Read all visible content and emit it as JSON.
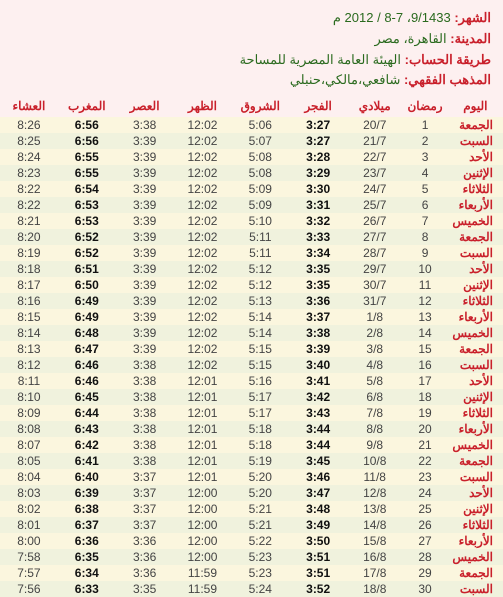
{
  "header": {
    "month_label": "الشهر:",
    "month_value": "9/1433، 7-8 / 2012 م",
    "city_label": "المدينة:",
    "city_value": "القاهرة، مصر",
    "method_label": "طريقة الحساب:",
    "method_value": "الهيئة العامة المصرية للمساحة",
    "fiqh_label": "المذهب الفقهي:",
    "fiqh_value": "شافعي،مالكي،حنبلي"
  },
  "columns": [
    "اليوم",
    "رمضان",
    "ميلادي",
    "الفجر",
    "الشروق",
    "الظهر",
    "العصر",
    "المغرب",
    "العشاء"
  ],
  "rows": [
    [
      "الجمعة",
      "1",
      "20/7",
      "3:27",
      "5:06",
      "12:02",
      "3:38",
      "6:56",
      "8:26"
    ],
    [
      "السبت",
      "2",
      "21/7",
      "3:27",
      "5:07",
      "12:02",
      "3:39",
      "6:56",
      "8:25"
    ],
    [
      "الأحد",
      "3",
      "22/7",
      "3:28",
      "5:08",
      "12:02",
      "3:39",
      "6:55",
      "8:24"
    ],
    [
      "الإثنين",
      "4",
      "23/7",
      "3:29",
      "5:08",
      "12:02",
      "3:39",
      "6:55",
      "8:23"
    ],
    [
      "الثلاثاء",
      "5",
      "24/7",
      "3:30",
      "5:09",
      "12:02",
      "3:39",
      "6:54",
      "8:22"
    ],
    [
      "الأربعاء",
      "6",
      "25/7",
      "3:31",
      "5:09",
      "12:02",
      "3:39",
      "6:53",
      "8:22"
    ],
    [
      "الخميس",
      "7",
      "26/7",
      "3:32",
      "5:10",
      "12:02",
      "3:39",
      "6:53",
      "8:21"
    ],
    [
      "الجمعة",
      "8",
      "27/7",
      "3:33",
      "5:11",
      "12:02",
      "3:39",
      "6:52",
      "8:20"
    ],
    [
      "السبت",
      "9",
      "28/7",
      "3:34",
      "5:11",
      "12:02",
      "3:39",
      "6:52",
      "8:19"
    ],
    [
      "الأحد",
      "10",
      "29/7",
      "3:35",
      "5:12",
      "12:02",
      "3:39",
      "6:51",
      "8:18"
    ],
    [
      "الإثنين",
      "11",
      "30/7",
      "3:35",
      "5:12",
      "12:02",
      "3:39",
      "6:50",
      "8:17"
    ],
    [
      "الثلاثاء",
      "12",
      "31/7",
      "3:36",
      "5:13",
      "12:02",
      "3:39",
      "6:49",
      "8:16"
    ],
    [
      "الأربعاء",
      "13",
      "1/8",
      "3:37",
      "5:14",
      "12:02",
      "3:39",
      "6:49",
      "8:15"
    ],
    [
      "الخميس",
      "14",
      "2/8",
      "3:38",
      "5:14",
      "12:02",
      "3:39",
      "6:48",
      "8:14"
    ],
    [
      "الجمعة",
      "15",
      "3/8",
      "3:39",
      "5:15",
      "12:02",
      "3:39",
      "6:47",
      "8:13"
    ],
    [
      "السبت",
      "16",
      "4/8",
      "3:40",
      "5:15",
      "12:02",
      "3:38",
      "6:46",
      "8:12"
    ],
    [
      "الأحد",
      "17",
      "5/8",
      "3:41",
      "5:16",
      "12:01",
      "3:38",
      "6:46",
      "8:11"
    ],
    [
      "الإثنين",
      "18",
      "6/8",
      "3:42",
      "5:17",
      "12:01",
      "3:38",
      "6:45",
      "8:10"
    ],
    [
      "الثلاثاء",
      "19",
      "7/8",
      "3:43",
      "5:17",
      "12:01",
      "3:38",
      "6:44",
      "8:09"
    ],
    [
      "الأربعاء",
      "20",
      "8/8",
      "3:44",
      "5:18",
      "12:01",
      "3:38",
      "6:43",
      "8:08"
    ],
    [
      "الخميس",
      "21",
      "9/8",
      "3:44",
      "5:18",
      "12:01",
      "3:38",
      "6:42",
      "8:07"
    ],
    [
      "الجمعة",
      "22",
      "10/8",
      "3:45",
      "5:19",
      "12:01",
      "3:38",
      "6:41",
      "8:05"
    ],
    [
      "السبت",
      "23",
      "11/8",
      "3:46",
      "5:20",
      "12:01",
      "3:37",
      "6:40",
      "8:04"
    ],
    [
      "الأحد",
      "24",
      "12/8",
      "3:47",
      "5:20",
      "12:00",
      "3:37",
      "6:39",
      "8:03"
    ],
    [
      "الإثنين",
      "25",
      "13/8",
      "3:48",
      "5:21",
      "12:00",
      "3:37",
      "6:38",
      "8:02"
    ],
    [
      "الثلاثاء",
      "26",
      "14/8",
      "3:49",
      "5:21",
      "12:00",
      "3:37",
      "6:37",
      "8:01"
    ],
    [
      "الأربعاء",
      "27",
      "15/8",
      "3:50",
      "5:22",
      "12:00",
      "3:36",
      "6:36",
      "8:00"
    ],
    [
      "الخميس",
      "28",
      "16/8",
      "3:51",
      "5:23",
      "12:00",
      "3:36",
      "6:35",
      "7:58"
    ],
    [
      "الجمعة",
      "29",
      "17/8",
      "3:51",
      "5:23",
      "11:59",
      "3:36",
      "6:34",
      "7:57"
    ],
    [
      "السبت",
      "30",
      "18/8",
      "3:52",
      "5:24",
      "11:59",
      "3:35",
      "6:33",
      "7:56"
    ]
  ]
}
